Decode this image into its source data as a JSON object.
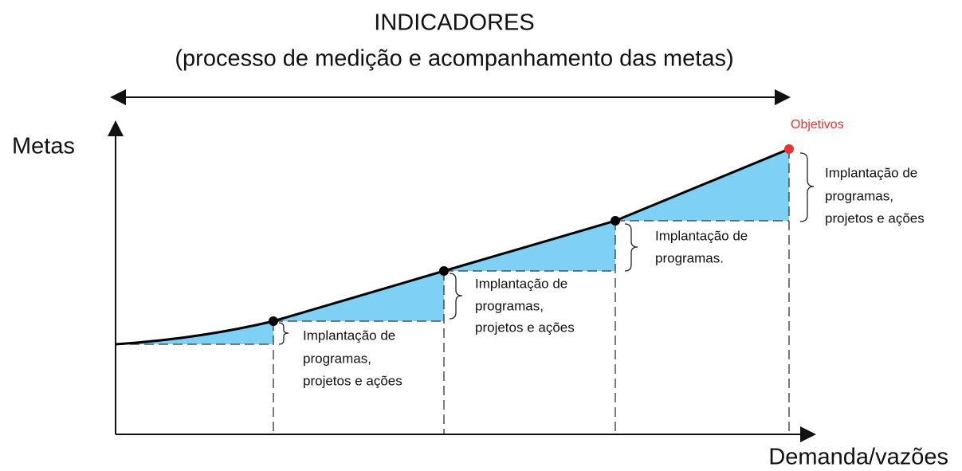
{
  "header": {
    "title": "INDICADORES",
    "subtitle": "(processo de medição e acompanhamento das metas)"
  },
  "axes": {
    "y_label": "Metas",
    "x_label": "Demanda/vazões"
  },
  "goal_label": "Objetivos",
  "annotations": [
    {
      "lines": [
        "Implantação de",
        "programas,",
        "projetos e ações"
      ]
    },
    {
      "lines": [
        "Implantação de",
        "programas,",
        "projetos e ações"
      ]
    },
    {
      "lines": [
        "Implantação de",
        "programas."
      ]
    },
    {
      "lines": [
        "Implantação de",
        "programas,",
        "projetos e ações"
      ]
    }
  ]
}
